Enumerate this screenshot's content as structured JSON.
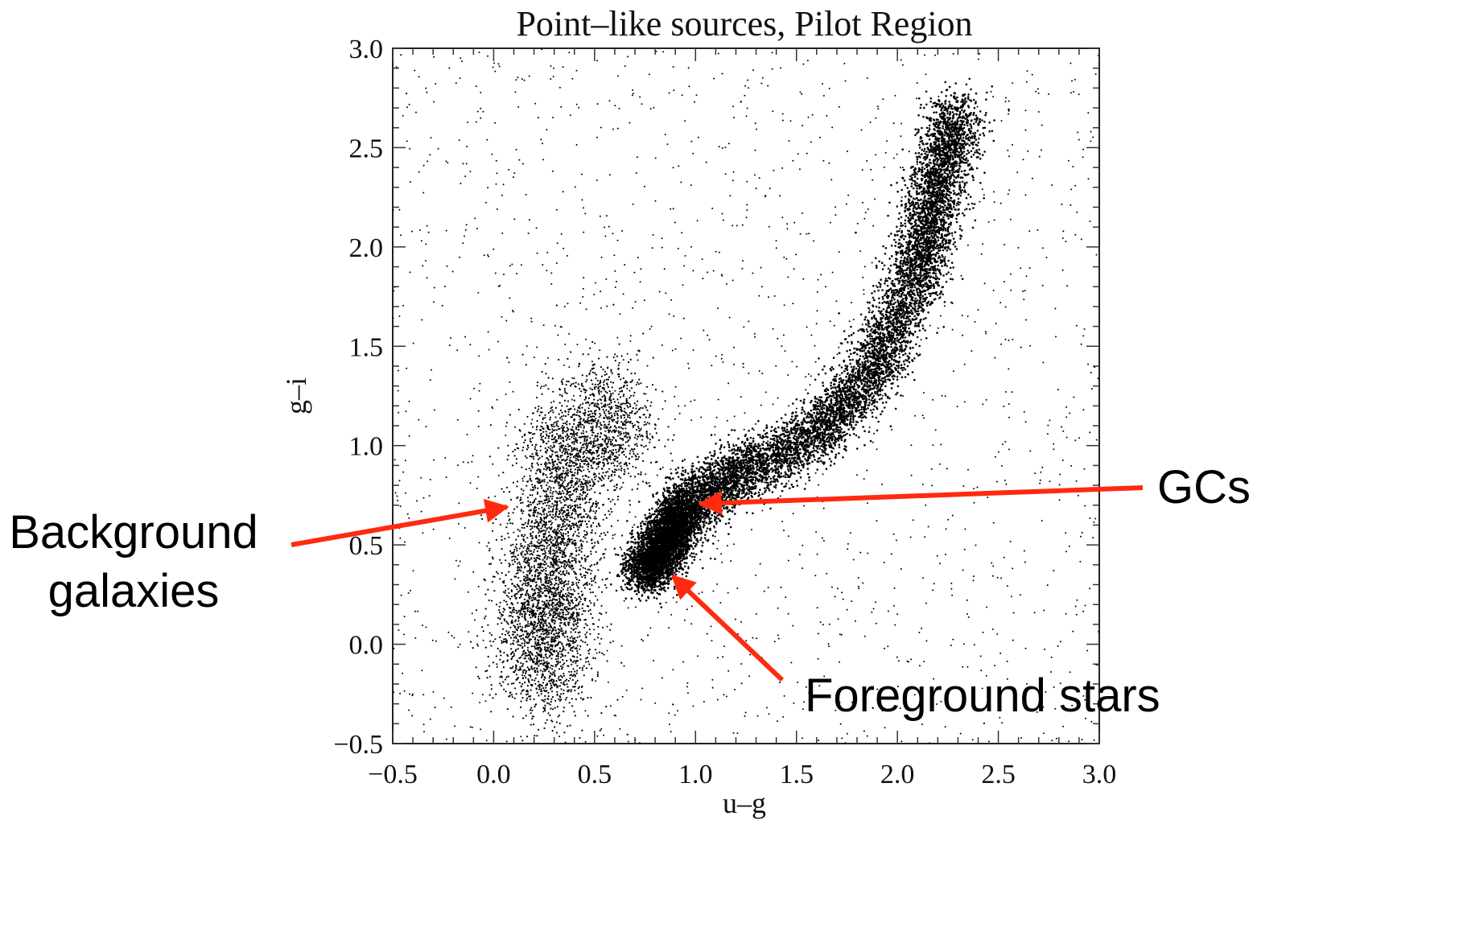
{
  "chart_data": {
    "type": "scatter",
    "title": "Point–like sources, Pilot Region",
    "xlabel": "u–g",
    "ylabel": "g–i",
    "xlim": [
      -0.5,
      3.0
    ],
    "ylim": [
      -0.5,
      3.0
    ],
    "xticks": [
      "−0.5",
      "0.0",
      "0.5",
      "1.0",
      "1.5",
      "2.0",
      "2.5",
      "3.0"
    ],
    "yticks": [
      "−0.5",
      "0.0",
      "0.5",
      "1.0",
      "1.5",
      "2.0",
      "2.5",
      "3.0"
    ],
    "grid": false,
    "point_color": "#000000",
    "series": [
      {
        "values": [
          {
            "x": 0.75,
            "y": 0.35
          },
          {
            "x": 0.85,
            "y": 0.5
          },
          {
            "x": 0.95,
            "y": 0.7
          },
          {
            "x": 1.2,
            "y": 0.85
          },
          {
            "x": 1.6,
            "y": 1.05
          },
          {
            "x": 1.9,
            "y": 1.4
          },
          {
            "x": 2.1,
            "y": 1.9
          },
          {
            "x": 2.2,
            "y": 2.3
          },
          {
            "x": 2.3,
            "y": 2.7
          },
          {
            "x": 0.25,
            "y": 0.2
          },
          {
            "x": 0.3,
            "y": 0.5
          },
          {
            "x": 0.35,
            "y": 0.9
          },
          {
            "x": 0.25,
            "y": -0.05
          },
          {
            "x": 0.55,
            "y": 1.1
          }
        ]
      }
    ],
    "annotations": [
      {
        "text": "GCs",
        "arrow_color": "#ff2a10",
        "x": 1.0,
        "y": 0.7
      },
      {
        "text": "Background",
        "arrow_color": "#ff2a10",
        "x": 0.1,
        "y": 0.7
      },
      {
        "text": "galaxies"
      },
      {
        "text": "Foreground stars",
        "arrow_color": "#ff2a10",
        "x": 0.85,
        "y": 0.35
      }
    ]
  }
}
